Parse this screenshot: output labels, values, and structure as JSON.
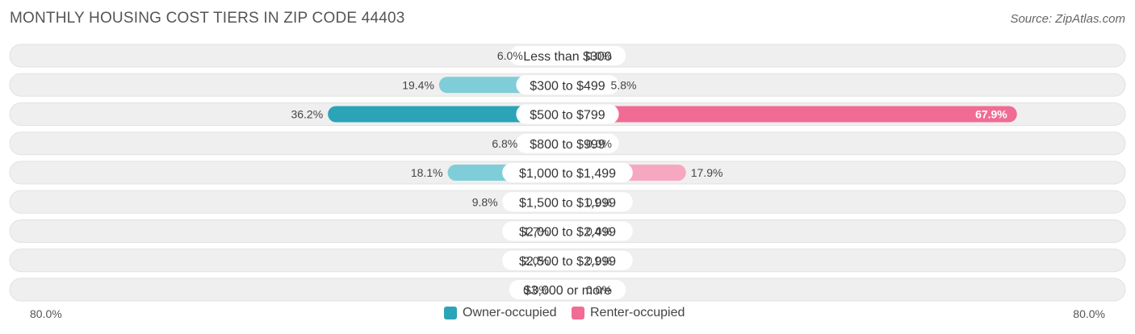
{
  "header": {
    "title": "MONTHLY HOUSING COST TIERS IN ZIP CODE 44403",
    "source": "Source: ZipAtlas.com"
  },
  "colors": {
    "owner_dark": "#2ba4b8",
    "owner_light": "#7fcdd8",
    "renter_dark": "#f06c94",
    "renter_light": "#f7a8c1",
    "track": "#efefef"
  },
  "chart_data": {
    "type": "bar",
    "orientation": "diverging-horizontal",
    "categories": [
      "Less than $300",
      "$300 to $499",
      "$500 to $799",
      "$800 to $999",
      "$1,000 to $1,499",
      "$1,500 to $1,999",
      "$2,000 to $2,499",
      "$2,500 to $2,999",
      "$3,000 or more"
    ],
    "series": [
      {
        "name": "Owner-occupied",
        "values": [
          6.0,
          19.4,
          36.2,
          6.8,
          18.1,
          9.8,
          1.7,
          2.0,
          0.0
        ]
      },
      {
        "name": "Renter-occupied",
        "values": [
          0.0,
          5.8,
          67.9,
          0.0,
          17.9,
          0.0,
          0.0,
          0.0,
          0.0
        ]
      }
    ],
    "value_labels": {
      "owner": [
        "6.0%",
        "19.4%",
        "36.2%",
        "6.8%",
        "18.1%",
        "9.8%",
        "1.7%",
        "2.0%",
        "0.0%"
      ],
      "renter": [
        "0.0%",
        "5.8%",
        "67.9%",
        "0.0%",
        "17.9%",
        "0.0%",
        "0.0%",
        "0.0%",
        "0.0%"
      ]
    },
    "xlim": [
      -80,
      80
    ],
    "axis_labels": {
      "left": "80.0%",
      "right": "80.0%"
    },
    "legend": {
      "placement": "bottom-center",
      "entries": [
        "Owner-occupied",
        "Renter-occupied"
      ]
    }
  }
}
